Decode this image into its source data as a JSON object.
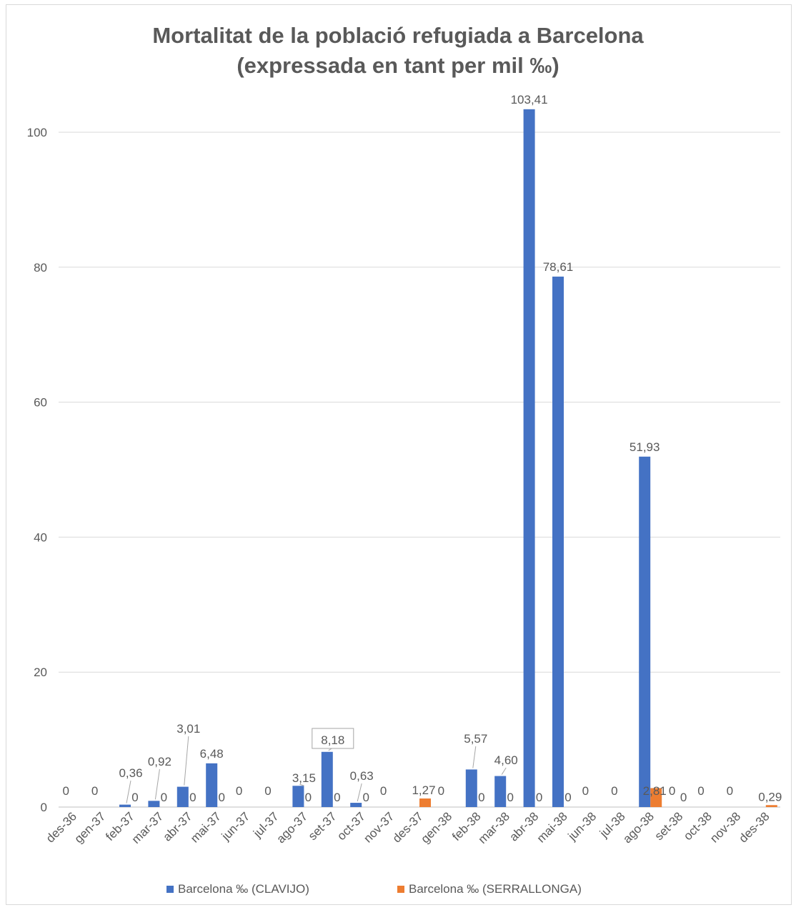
{
  "chart_data": {
    "type": "bar",
    "title_line1": "Mortalitat de la població refugiada a Barcelona",
    "title_line2": "(expressada en tant per mil ‰)",
    "categories": [
      "des-36",
      "gen-37",
      "feb-37",
      "mar-37",
      "abr-37",
      "mai-37",
      "jun-37",
      "jul-37",
      "ago-37",
      "set-37",
      "oct-37",
      "nov-37",
      "des-37",
      "gen-38",
      "feb-38",
      "mar-38",
      "abr-38",
      "mai-38",
      "jun-38",
      "jul-38",
      "ago-38",
      "set-38",
      "oct-38",
      "nov-38",
      "des-38"
    ],
    "series": [
      {
        "name": "Barcelona ‰ (CLAVIJO)",
        "color": "#4472c4",
        "values": [
          0,
          0,
          0.36,
          0.92,
          3.01,
          6.48,
          0,
          0,
          3.15,
          8.18,
          0.63,
          0,
          0,
          0,
          5.57,
          4.6,
          103.41,
          78.61,
          0,
          0,
          51.93,
          0,
          0,
          0,
          0
        ],
        "labels": [
          "0",
          "0",
          "0,36",
          "0,92",
          "3,01",
          "6,48",
          "0",
          "0",
          "3,15",
          "8,18",
          "0,63",
          "0",
          "",
          "0",
          "5,57",
          "4,60",
          "103,41",
          "78,61",
          "0",
          "0",
          "51,93",
          "0",
          "0",
          "0",
          ""
        ]
      },
      {
        "name": "Barcelona ‰ (SERRALLONGA)",
        "color": "#ed7d31",
        "values": [
          0,
          0,
          0,
          0,
          0,
          0,
          0,
          0,
          0,
          0,
          0,
          0,
          1.27,
          0,
          0,
          0,
          0,
          0,
          0,
          0,
          2.81,
          0,
          0,
          0,
          0.29
        ],
        "labels": [
          "",
          "",
          "0",
          "0",
          "0",
          "0",
          "",
          "",
          "0",
          "0",
          "0",
          "",
          "1,27",
          "",
          "0",
          "0",
          "0",
          "0",
          "",
          "",
          "2,81",
          "0",
          "",
          "",
          "0,29"
        ]
      }
    ],
    "yticks": [
      0,
      20,
      40,
      60,
      80,
      100
    ],
    "ylim": [
      0,
      110
    ],
    "grid": true,
    "legend_position": "bottom"
  }
}
